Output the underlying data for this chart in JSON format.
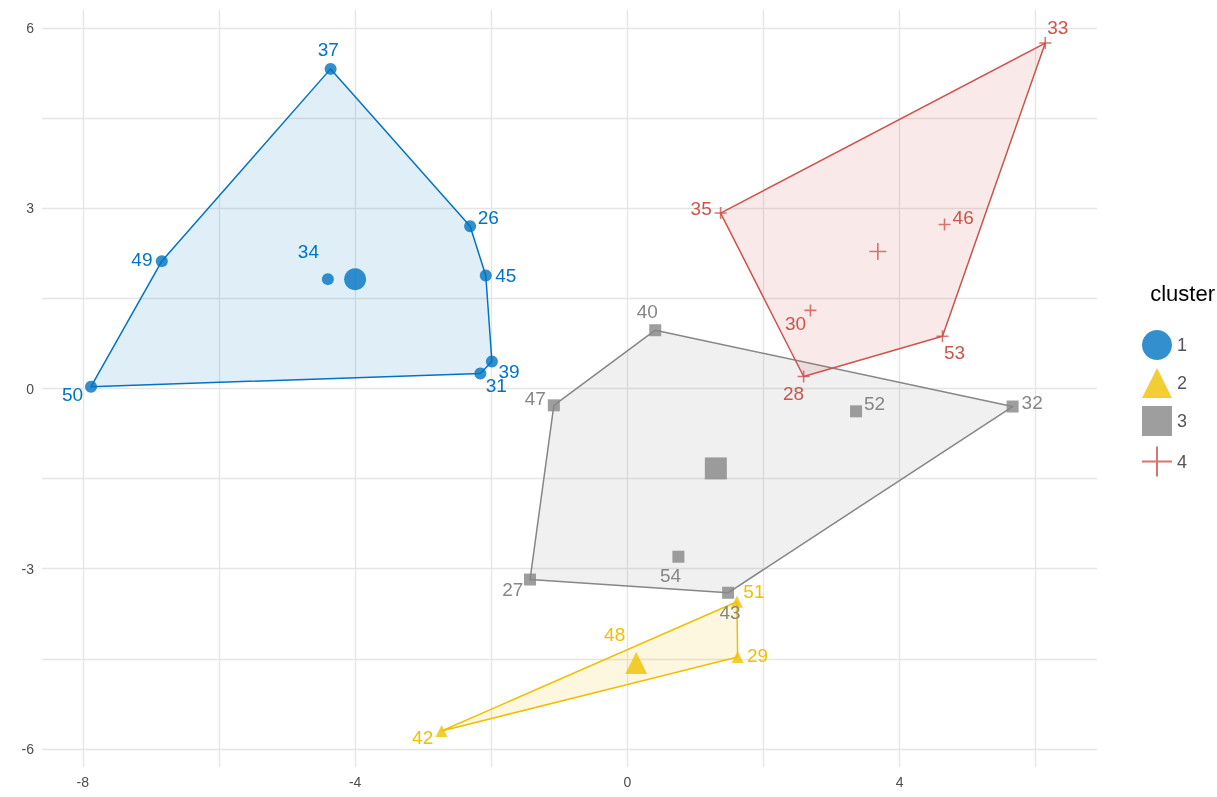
{
  "chart_data": {
    "type": "scatter",
    "legend_title": "cluster",
    "legend": "right",
    "grid": true,
    "xlim": [
      -8.6,
      6.9
    ],
    "ylim": [
      -6.3,
      6.3
    ],
    "xticks": [
      -8,
      {
        "value": -6,
        "label": null
      },
      -4,
      {
        "value": -2,
        "label": null
      },
      0,
      {
        "value": 2,
        "label": null
      },
      4,
      {
        "value": 6,
        "label": null
      }
    ],
    "yticks": [
      -6,
      {
        "value": -4.5,
        "label": null
      },
      -3,
      {
        "value": -1.5,
        "label": null
      },
      0,
      {
        "value": 1.5,
        "label": null
      },
      3,
      {
        "value": 4.5,
        "label": null
      },
      6
    ],
    "series": [
      {
        "type": "area",
        "color": "#0073c2",
        "x": [
          -7.88,
          -6.84,
          -4.36,
          -2.31,
          -2.08,
          -1.99,
          -2.16
        ],
        "values": [
          0.03,
          2.12,
          5.32,
          2.7,
          1.88,
          0.45,
          0.25
        ]
      },
      {
        "type": "area",
        "color": "#efc000",
        "x": [
          -2.73,
          1.61,
          1.62
        ],
        "values": [
          -5.7,
          -3.55,
          -4.47
        ]
      },
      {
        "type": "area",
        "color": "#868686",
        "x": [
          -1.08,
          0.41,
          5.66,
          1.48,
          -1.43
        ],
        "values": [
          -0.28,
          0.97,
          -0.3,
          -3.4,
          -3.18
        ]
      },
      {
        "type": "area",
        "color": "#cd534c",
        "x": [
          1.37,
          6.14,
          4.63,
          2.59
        ],
        "values": [
          2.92,
          5.75,
          0.87,
          0.2
        ]
      },
      {
        "name": "1",
        "color": "#0073c2",
        "marker": "circle",
        "x": [
          -4.36,
          -2.31,
          -2.08,
          -1.99,
          -2.16,
          -7.88,
          -6.84,
          -4.4
        ],
        "values": [
          5.32,
          2.7,
          1.88,
          0.45,
          0.25,
          0.03,
          2.12,
          1.82
        ]
      },
      {
        "name": "2",
        "color": "#efc000",
        "marker": "triangle",
        "x": [
          1.61,
          1.62,
          -2.73
        ],
        "values": [
          -3.55,
          -4.47,
          -5.7
        ]
      },
      {
        "name": "3",
        "color": "#868686",
        "marker": "square",
        "x": [
          0.41,
          5.66,
          1.48,
          -1.43,
          -1.08,
          3.36,
          0.75
        ],
        "values": [
          0.97,
          -0.3,
          -3.4,
          -3.18,
          -0.28,
          -0.38,
          -2.8
        ]
      },
      {
        "name": "4",
        "color": "#cd534c",
        "marker": "cross",
        "x": [
          6.14,
          1.37,
          4.66,
          4.63,
          2.59,
          2.69
        ],
        "values": [
          5.75,
          2.92,
          2.73,
          0.87,
          0.2,
          1.3
        ]
      },
      {
        "color": "#0073c2",
        "marker": "circle",
        "x": [
          -4.0
        ],
        "values": [
          1.82
        ]
      },
      {
        "color": "#efc000",
        "marker": "triangle",
        "x": [
          0.13
        ],
        "values": [
          -4.57
        ]
      },
      {
        "color": "#868686",
        "marker": "square",
        "x": [
          1.3
        ],
        "values": [
          -1.33
        ]
      },
      {
        "color": "#cd534c",
        "marker": "cross",
        "x": [
          3.68
        ],
        "values": [
          2.28
        ]
      }
    ],
    "annotations": [
      {
        "text": "37",
        "x": -4.36,
        "y": 5.32
      },
      {
        "text": "26",
        "x": -2.31,
        "y": 2.7
      },
      {
        "text": "45",
        "x": -2.08,
        "y": 1.88
      },
      {
        "text": "39",
        "x": -1.99,
        "y": 0.45
      },
      {
        "text": "31",
        "x": -2.16,
        "y": 0.25
      },
      {
        "text": "50",
        "x": -7.88,
        "y": 0.03
      },
      {
        "text": "49",
        "x": -6.84,
        "y": 2.12
      },
      {
        "text": "34",
        "x": -4.4,
        "y": 1.82
      },
      {
        "text": "51",
        "x": 1.61,
        "y": -3.55
      },
      {
        "text": "29",
        "x": 1.62,
        "y": -4.47
      },
      {
        "text": "42",
        "x": -2.73,
        "y": -5.7
      },
      {
        "text": "48",
        "x": 0.1,
        "y": -4.55
      },
      {
        "text": "40",
        "x": 0.41,
        "y": 0.97
      },
      {
        "text": "32",
        "x": 5.66,
        "y": -0.3
      },
      {
        "text": "43",
        "x": 1.48,
        "y": -3.4
      },
      {
        "text": "27",
        "x": -1.43,
        "y": -3.18
      },
      {
        "text": "47",
        "x": -1.08,
        "y": -0.28
      },
      {
        "text": "52",
        "x": 3.36,
        "y": -0.38
      },
      {
        "text": "54",
        "x": 0.75,
        "y": -2.8
      },
      {
        "text": "33",
        "x": 6.14,
        "y": 5.75
      },
      {
        "text": "35",
        "x": 1.37,
        "y": 2.92
      },
      {
        "text": "46",
        "x": 4.66,
        "y": 2.73
      },
      {
        "text": "53",
        "x": 4.63,
        "y": 0.87
      },
      {
        "text": "28",
        "x": 2.59,
        "y": 0.2
      },
      {
        "text": "30",
        "x": 2.69,
        "y": 1.3
      }
    ]
  }
}
